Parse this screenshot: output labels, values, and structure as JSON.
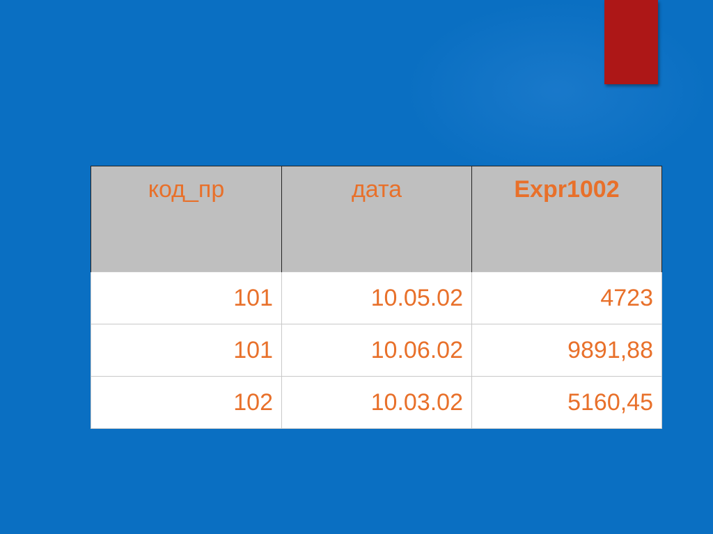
{
  "table": {
    "headers": [
      "код_пр",
      "дата",
      "Expr1002"
    ],
    "rows": [
      [
        "101",
        "10.05.02",
        "4723"
      ],
      [
        "101",
        "10.06.02",
        "9891,88"
      ],
      [
        "102",
        "10.03.02",
        "5160,45"
      ]
    ]
  },
  "colors": {
    "background": "#0a6fc2",
    "accent_bar": "#ad1717",
    "text": "#e8702a",
    "header_bg": "#bfbfbf"
  }
}
